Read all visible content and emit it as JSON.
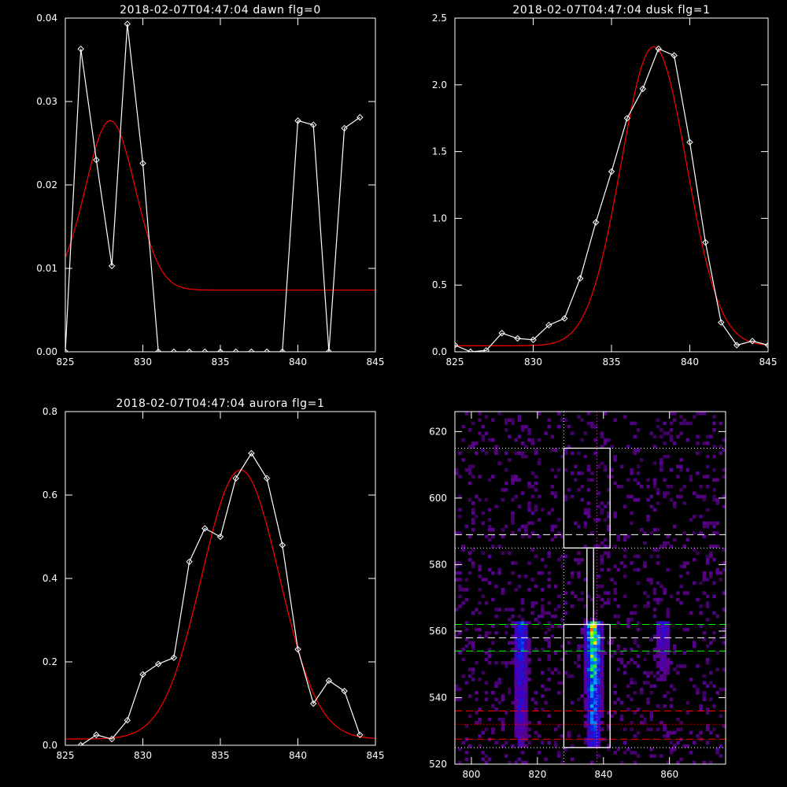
{
  "chart_data": [
    {
      "id": "dawn",
      "type": "line",
      "title": "2018-02-07T04:47:04 dawn flg=0",
      "xlim": [
        825,
        845
      ],
      "ylim": [
        0,
        0.04
      ],
      "xticks": [
        825,
        830,
        835,
        840,
        845
      ],
      "xtick_labels": [
        "825",
        "830",
        "835",
        "840",
        "845"
      ],
      "yticks": [
        0,
        0.01,
        0.02,
        0.03,
        0.04
      ],
      "ytick_labels": [
        "0.00",
        "0.01",
        "0.02",
        "0.03",
        "0.04"
      ],
      "series": [
        {
          "kind": "data",
          "color": "#ffffff",
          "marker": "diamond",
          "x": [
            825,
            826,
            827,
            828,
            829,
            830,
            831,
            832,
            833,
            834,
            835,
            836,
            837,
            838,
            839,
            840,
            841,
            842,
            843,
            844
          ],
          "y": [
            0.0,
            0.0363,
            0.023,
            0.0103,
            0.0393,
            0.0226,
            0.0,
            0.0,
            0.0,
            0.0,
            0.0,
            0.0,
            0.0,
            0.0,
            0.0,
            0.0277,
            0.0272,
            0.0,
            0.0268,
            0.0281
          ]
        },
        {
          "kind": "fit",
          "color": "#ff0000",
          "gauss": {
            "amp": 0.0203,
            "mu": 827.9,
            "sigma": 1.6,
            "offset": 0.0074
          }
        }
      ]
    },
    {
      "id": "dusk",
      "type": "line",
      "title": "2018-02-07T04:47:04 dusk flg=1",
      "xlim": [
        825,
        845
      ],
      "ylim": [
        0,
        2.5
      ],
      "xticks": [
        825,
        830,
        835,
        840,
        845
      ],
      "xtick_labels": [
        "825",
        "830",
        "835",
        "840",
        "845"
      ],
      "yticks": [
        0,
        0.5,
        1.0,
        1.5,
        2.0,
        2.5
      ],
      "ytick_labels": [
        "0.0",
        "0.5",
        "1.0",
        "1.5",
        "2.0",
        "2.5"
      ],
      "series": [
        {
          "kind": "data",
          "color": "#ffffff",
          "marker": "diamond",
          "x": [
            825,
            826,
            827,
            828,
            829,
            830,
            831,
            832,
            833,
            834,
            835,
            836,
            837,
            838,
            839,
            840,
            841,
            842,
            843,
            844,
            845
          ],
          "y": [
            0.05,
            0.0,
            0.01,
            0.14,
            0.1,
            0.09,
            0.2,
            0.25,
            0.55,
            0.97,
            1.35,
            1.75,
            1.97,
            2.27,
            2.22,
            1.57,
            0.82,
            0.22,
            0.05,
            0.08,
            0.05
          ]
        },
        {
          "kind": "fit",
          "color": "#ff0000",
          "gauss": {
            "amp": 2.24,
            "mu": 837.7,
            "sigma": 2.1,
            "offset": 0.045
          }
        }
      ]
    },
    {
      "id": "aurora",
      "type": "line",
      "title": "2018-02-07T04:47:04 aurora flg=1",
      "xlim": [
        825,
        845
      ],
      "ylim": [
        0,
        0.8
      ],
      "xticks": [
        825,
        830,
        835,
        840,
        845
      ],
      "xtick_labels": [
        "825",
        "830",
        "835",
        "840",
        "845"
      ],
      "yticks": [
        0,
        0.2,
        0.4,
        0.6,
        0.8
      ],
      "ytick_labels": [
        "0.0",
        "0.2",
        "0.4",
        "0.6",
        "0.8"
      ],
      "series": [
        {
          "kind": "data",
          "color": "#ffffff",
          "marker": "diamond",
          "x": [
            826,
            827,
            828,
            829,
            830,
            831,
            832,
            833,
            834,
            835,
            836,
            837,
            838,
            839,
            840,
            841,
            842,
            843,
            844
          ],
          "y": [
            0.0,
            0.025,
            0.015,
            0.06,
            0.17,
            0.195,
            0.21,
            0.44,
            0.52,
            0.5,
            0.64,
            0.7,
            0.64,
            0.48,
            0.23,
            0.1,
            0.155,
            0.13,
            0.025
          ]
        },
        {
          "kind": "fit",
          "color": "#ff0000",
          "gauss": {
            "amp": 0.645,
            "mu": 836.3,
            "sigma": 2.5,
            "offset": 0.015
          }
        }
      ]
    },
    {
      "id": "image",
      "type": "heatmap",
      "title": "",
      "xlim": [
        795,
        877
      ],
      "ylim": [
        520,
        626
      ],
      "xticks": [
        800,
        820,
        840,
        860
      ],
      "xtick_labels": [
        "800",
        "820",
        "840",
        "860"
      ],
      "yticks": [
        520,
        540,
        560,
        580,
        600,
        620
      ],
      "ytick_labels": [
        "520",
        "540",
        "560",
        "580",
        "600",
        "620"
      ],
      "emission_columns": [
        {
          "x": 815,
          "y_range": [
            525,
            562
          ],
          "peak": 0.55
        },
        {
          "x": 837,
          "y_range": [
            525,
            562
          ],
          "peak": 1.0
        },
        {
          "x": 858,
          "y_range": [
            545,
            562
          ],
          "peak": 0.4
        }
      ],
      "boxes": [
        {
          "x": [
            828,
            842
          ],
          "y": [
            585,
            615
          ],
          "color": "#ffffff"
        },
        {
          "x": [
            828,
            842
          ],
          "y": [
            525,
            562
          ],
          "color": "#ffffff"
        },
        {
          "x": [
            835,
            837
          ],
          "y": [
            562,
            585
          ],
          "color": "#ffffff"
        }
      ],
      "vlines": [
        {
          "x": 828,
          "style": "dotted",
          "color": "#ffffff"
        },
        {
          "x": 838,
          "style": "dotted",
          "color": "#ff44ff"
        }
      ],
      "hlines": [
        {
          "y": 615,
          "style": "dotted",
          "color": "#ffffff"
        },
        {
          "y": 589,
          "style": "dashed",
          "color": "#ffffff"
        },
        {
          "y": 585,
          "style": "dotted",
          "color": "#ffffff"
        },
        {
          "y": 562,
          "style": "dashed",
          "color": "#00ff00"
        },
        {
          "y": 558,
          "style": "dashed",
          "color": "#ffffff"
        },
        {
          "y": 554,
          "style": "dashed",
          "color": "#00ff00"
        },
        {
          "y": 536,
          "style": "dashed",
          "color": "#ff0000"
        },
        {
          "y": 532,
          "style": "dotted",
          "color": "#ff0000"
        },
        {
          "y": 527.5,
          "style": "dashed",
          "color": "#ff0000"
        },
        {
          "y": 525,
          "style": "dotted",
          "color": "#ffffff"
        }
      ]
    }
  ]
}
